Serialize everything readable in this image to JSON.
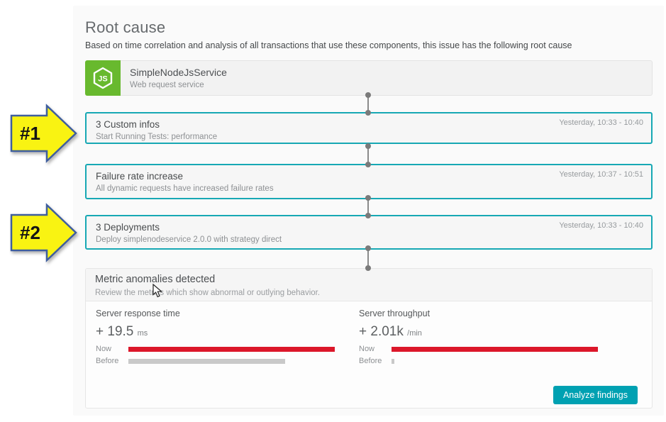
{
  "page": {
    "title": "Root cause",
    "subtitle": "Based on time correlation and analysis of all transactions that use these components, this issue has the following root cause"
  },
  "service": {
    "name": "SimpleNodeJsService",
    "type": "Web request service",
    "icon": "nodejs-icon",
    "icon_label": "JS"
  },
  "events": [
    {
      "title": "3 Custom infos",
      "description": "Start Running Tests: performance",
      "time": "Yesterday, 10:33 - 10:40",
      "highlighted": true
    },
    {
      "title": "Failure rate increase",
      "description": "All dynamic requests have increased failure rates",
      "time": "Yesterday, 10:37 - 10:51",
      "highlighted": true
    },
    {
      "title": "3 Deployments",
      "description": "Deploy simplenodeservice 2.0.0 with strategy direct",
      "time": "Yesterday, 10:33 - 10:40",
      "highlighted": true
    }
  ],
  "annotations": [
    {
      "label": "#1",
      "points_to": "3 Custom infos"
    },
    {
      "label": "#2",
      "points_to": "3 Deployments"
    }
  ],
  "metrics_panel": {
    "title": "Metric anomalies detected",
    "subtitle": "Review the metrics which show abnormal or outlying behavior.",
    "metrics": [
      {
        "name": "Server response time",
        "delta": "+ 19.5",
        "unit": "ms",
        "now_label": "Now",
        "before_label": "Before",
        "now_pct": 100,
        "before_pct": 76
      },
      {
        "name": "Server throughput",
        "delta": "+ 2.01k",
        "unit": "/min",
        "now_label": "Now",
        "before_label": "Before",
        "now_pct": 100,
        "before_pct": 1.4
      }
    ],
    "analyze_button": "Analyze findings"
  },
  "colors": {
    "highlight_border": "#17a8b4",
    "accent_teal": "#00a1b2",
    "bar_now_red": "#dc172a",
    "bar_before_gray": "#c9c9c9",
    "nodejs_green": "#68b92e",
    "annotation_yellow": "#f9f312",
    "annotation_border_blue": "#3f5e9e"
  }
}
